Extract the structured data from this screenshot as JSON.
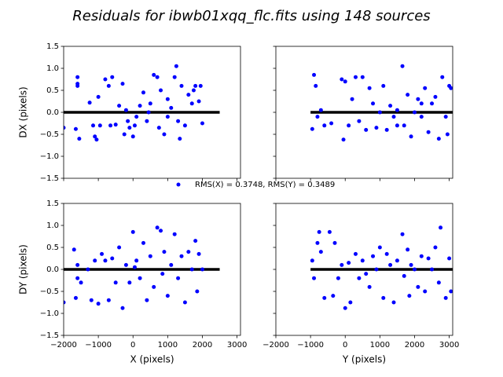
{
  "title": "Residuals for ibwb01xqq_flc.fits using 148 sources",
  "legend": {
    "label": "RMS(X) = 0.3748, RMS(Y) = 0.3489",
    "color": "#0000ff"
  },
  "chart_data": [
    {
      "type": "scatter",
      "ylabel": "DX (pixels)",
      "color": "#0000ff",
      "xlim": [
        -2000,
        3100
      ],
      "ylim": [
        -1.5,
        1.5
      ],
      "xticks": [
        -2000,
        -1000,
        0,
        1000,
        2000,
        3000
      ],
      "yticks": [
        {
          "value": -1.5,
          "label": "−1.5"
        },
        {
          "value": -1.0,
          "label": "−1.0"
        },
        {
          "value": -0.5,
          "label": "−0.5"
        },
        {
          "value": 0.0,
          "label": "0.0"
        },
        {
          "value": 0.5,
          "label": "0.5"
        },
        {
          "value": 1.0,
          "label": "1.0"
        },
        {
          "value": 1.5,
          "label": "1.5"
        }
      ],
      "refline": {
        "y": 0,
        "x": [
          -2000,
          2500
        ]
      },
      "x": [
        -2000,
        -1650,
        -1600,
        -1600,
        -1600,
        -1550,
        -1250,
        -1150,
        -1100,
        -1050,
        -1000,
        -950,
        -800,
        -700,
        -650,
        -600,
        -500,
        -400,
        -300,
        -250,
        -150,
        -100,
        0,
        50,
        200,
        300,
        400,
        500,
        600,
        700,
        750,
        800,
        900,
        1000,
        1100,
        1200,
        1250,
        1300,
        1350,
        1400,
        1500,
        1600,
        1700,
        1750,
        1800,
        1900,
        1950,
        2000,
        100,
        -200,
        450,
        1000
      ],
      "values": [
        -0.35,
        -0.38,
        0.6,
        0.65,
        0.8,
        -0.6,
        0.22,
        -0.3,
        -0.55,
        -0.62,
        0.35,
        -0.3,
        0.75,
        0.6,
        -0.3,
        0.8,
        -0.28,
        0.15,
        0.65,
        -0.5,
        -0.2,
        -0.35,
        -0.55,
        -0.3,
        0.15,
        0.45,
        -0.2,
        0.2,
        0.85,
        0.8,
        -0.35,
        0.5,
        -0.5,
        0.3,
        0.1,
        0.8,
        1.05,
        -0.2,
        -0.6,
        0.6,
        -0.3,
        0.4,
        0.2,
        0.5,
        0.6,
        0.25,
        0.6,
        -0.25,
        -0.1,
        0.05,
        0.0,
        -0.1
      ]
    },
    {
      "type": "scatter",
      "color": "#0000ff",
      "xlim": [
        -2000,
        3100
      ],
      "ylim": [
        -1.5,
        1.5
      ],
      "xticks": [
        -2000,
        -1000,
        0,
        1000,
        2000,
        3000
      ],
      "yticks": [
        -1.5,
        -1.0,
        -0.5,
        0.0,
        0.5,
        1.0,
        1.5
      ],
      "refline": {
        "y": 0,
        "x": [
          -1000,
          3100
        ]
      },
      "x": [
        -950,
        -900,
        -850,
        -800,
        -700,
        -600,
        -400,
        -100,
        -50,
        0,
        100,
        200,
        300,
        400,
        500,
        600,
        700,
        800,
        900,
        1000,
        1100,
        1200,
        1300,
        1400,
        1500,
        1650,
        1700,
        1800,
        1900,
        2000,
        2100,
        2200,
        2300,
        2400,
        2500,
        2600,
        2700,
        2800,
        2900,
        3000,
        3050,
        2950,
        2200,
        1500
      ],
      "values": [
        -0.38,
        0.85,
        0.6,
        -0.1,
        0.05,
        -0.3,
        -0.25,
        0.75,
        -0.62,
        0.7,
        -0.3,
        0.3,
        0.8,
        -0.2,
        0.8,
        -0.4,
        0.55,
        0.2,
        -0.35,
        0.0,
        0.6,
        -0.4,
        0.15,
        -0.1,
        0.05,
        1.05,
        -0.3,
        0.4,
        -0.55,
        0.0,
        0.3,
        0.2,
        0.55,
        -0.45,
        0.2,
        0.35,
        -0.6,
        0.8,
        -0.1,
        0.6,
        0.55,
        -0.5,
        -0.1,
        -0.3
      ]
    },
    {
      "type": "scatter",
      "xlabel": "X (pixels)",
      "ylabel": "DY (pixels)",
      "color": "#0000ff",
      "xlim": [
        -2000,
        3100
      ],
      "ylim": [
        -1.5,
        1.5
      ],
      "xticks": [
        {
          "value": -2000,
          "label": "−2000"
        },
        {
          "value": -1000,
          "label": "−1000"
        },
        0,
        1000,
        2000,
        3000
      ],
      "yticks": [
        {
          "value": -1.5,
          "label": "−1.5"
        },
        {
          "value": -1.0,
          "label": "−1.0"
        },
        {
          "value": -0.5,
          "label": "−0.5"
        },
        {
          "value": 0.0,
          "label": "0.0"
        },
        {
          "value": 0.5,
          "label": "0.5"
        },
        {
          "value": 1.0,
          "label": "1.0"
        },
        {
          "value": 1.5,
          "label": "1.5"
        }
      ],
      "refline": {
        "y": 0,
        "x": [
          -2000,
          2500
        ]
      },
      "x": [
        -2000,
        -1700,
        -1650,
        -1600,
        -1600,
        -1500,
        -1200,
        -1100,
        -1000,
        -900,
        -800,
        -700,
        -600,
        -500,
        -400,
        -300,
        -200,
        -100,
        0,
        100,
        200,
        300,
        400,
        500,
        600,
        700,
        800,
        850,
        900,
        1000,
        1100,
        1200,
        1300,
        1400,
        1500,
        1600,
        1700,
        1800,
        1850,
        1900,
        2000,
        50,
        -1300
      ],
      "values": [
        -0.75,
        0.45,
        -0.65,
        0.1,
        -0.2,
        -0.3,
        -0.7,
        0.2,
        -0.78,
        0.35,
        0.2,
        -0.7,
        0.25,
        -0.3,
        0.5,
        -0.88,
        0.1,
        -0.3,
        0.85,
        0.2,
        -0.2,
        0.6,
        -0.7,
        0.3,
        -0.4,
        0.95,
        0.88,
        -0.1,
        0.4,
        -0.6,
        0.1,
        0.8,
        -0.2,
        0.3,
        -0.75,
        0.4,
        0.0,
        0.65,
        -0.5,
        0.35,
        0.0,
        0.05,
        0.0
      ]
    },
    {
      "type": "scatter",
      "xlabel": "Y (pixels)",
      "color": "#0000ff",
      "xlim": [
        -2000,
        3100
      ],
      "ylim": [
        -1.5,
        1.5
      ],
      "xticks": [
        {
          "value": -2000,
          "label": "−2000"
        },
        {
          "value": -1000,
          "label": "−1000"
        },
        0,
        1000,
        2000,
        3000
      ],
      "yticks": [
        -1.5,
        -1.0,
        -0.5,
        0.0,
        0.5,
        1.0,
        1.5
      ],
      "refline": {
        "y": 0,
        "x": [
          -1000,
          3100
        ]
      },
      "x": [
        -950,
        -900,
        -800,
        -750,
        -700,
        -600,
        -450,
        -350,
        -300,
        -200,
        -100,
        0,
        100,
        150,
        300,
        400,
        500,
        600,
        700,
        800,
        900,
        1000,
        1100,
        1200,
        1300,
        1400,
        1500,
        1650,
        1700,
        1800,
        1850,
        1900,
        2000,
        2100,
        2200,
        2300,
        2400,
        2500,
        2600,
        2700,
        2750,
        2900,
        3000,
        3050
      ],
      "values": [
        0.2,
        -0.2,
        0.6,
        0.85,
        0.4,
        -0.65,
        0.85,
        -0.6,
        0.6,
        -0.2,
        0.1,
        -0.88,
        0.15,
        -0.75,
        0.35,
        -0.2,
        0.2,
        -0.1,
        -0.4,
        0.3,
        0.0,
        0.5,
        -0.65,
        0.35,
        0.1,
        -0.75,
        0.2,
        0.8,
        -0.15,
        0.45,
        -0.6,
        0.1,
        0.0,
        -0.4,
        0.3,
        -0.5,
        0.25,
        0.0,
        0.5,
        -0.3,
        0.95,
        -0.65,
        0.25,
        -0.5
      ]
    }
  ]
}
